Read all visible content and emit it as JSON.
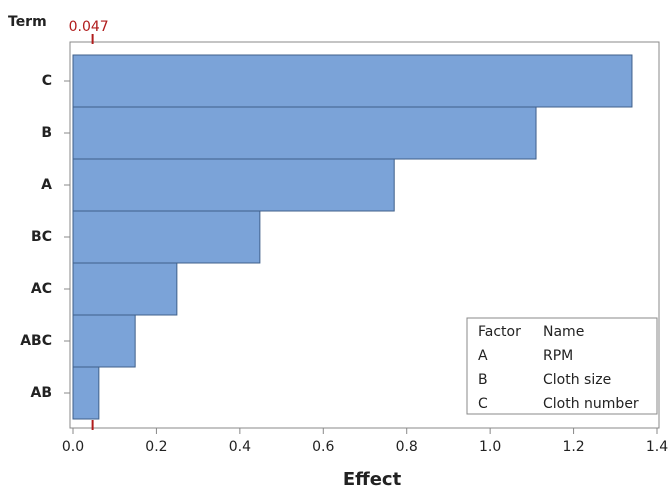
{
  "chart_data": {
    "type": "barh",
    "y_label": "Term",
    "x_label": "Effect",
    "categories": [
      "C",
      "B",
      "A",
      "BC",
      "AC",
      "ABC",
      "AB"
    ],
    "values": [
      1.34,
      1.11,
      0.77,
      0.448,
      0.249,
      0.149,
      0.062
    ],
    "color": "#7ba3d8",
    "xlim": [
      0,
      1.4
    ],
    "xticks": [
      {
        "value": 0,
        "label": "0.0"
      },
      0.2,
      0.4,
      0.6,
      0.8,
      {
        "value": 1,
        "label": "1.0"
      },
      1.2,
      1.4
    ],
    "reference_line": 0.047,
    "reference_color": "#b01c1c",
    "factor_table": {
      "header": [
        "Factor",
        "Name"
      ],
      "rows": [
        [
          "A",
          "RPM"
        ],
        [
          "B",
          "Cloth size"
        ],
        [
          "C",
          "Cloth number"
        ]
      ]
    }
  }
}
